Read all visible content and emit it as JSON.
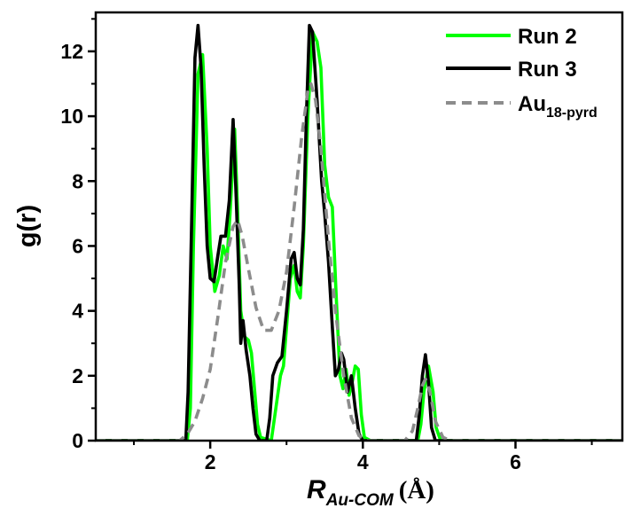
{
  "chart_data": {
    "type": "line",
    "xlabel": {
      "main": "R",
      "subscript": "Au-COM",
      "unit": "(Å)"
    },
    "ylabel": "g(r)",
    "xlim": [
      0.5,
      7.4
    ],
    "ylim": [
      0,
      13.2
    ],
    "x_ticks": [
      2,
      4,
      6
    ],
    "y_ticks": [
      0,
      2,
      4,
      6,
      8,
      10,
      12
    ],
    "x_tick_labels": [
      "2",
      "4",
      "6"
    ],
    "y_tick_labels": [
      "0",
      "2",
      "4",
      "6",
      "8",
      "10",
      "12"
    ],
    "grid": false,
    "legend_position": "top-right",
    "series": [
      {
        "name": "Run 2",
        "legend_label": {
          "main": "Run 2",
          "subscript": ""
        },
        "color": "#00ff00",
        "dash": "solid",
        "points": [
          [
            0.5,
            0
          ],
          [
            1.7,
            0
          ],
          [
            1.74,
            1.0
          ],
          [
            1.78,
            6.0
          ],
          [
            1.84,
            11.3
          ],
          [
            1.9,
            11.9
          ],
          [
            1.96,
            9.0
          ],
          [
            2.0,
            6.0
          ],
          [
            2.06,
            4.6
          ],
          [
            2.12,
            5.1
          ],
          [
            2.17,
            6.0
          ],
          [
            2.22,
            5.6
          ],
          [
            2.26,
            7.0
          ],
          [
            2.32,
            9.6
          ],
          [
            2.36,
            7.0
          ],
          [
            2.4,
            4.0
          ],
          [
            2.45,
            3.2
          ],
          [
            2.5,
            3.1
          ],
          [
            2.54,
            2.7
          ],
          [
            2.58,
            1.6
          ],
          [
            2.62,
            0.5
          ],
          [
            2.66,
            0.1
          ],
          [
            2.8,
            0
          ],
          [
            2.86,
            1.0
          ],
          [
            2.92,
            2.0
          ],
          [
            2.96,
            2.3
          ],
          [
            3.0,
            3.5
          ],
          [
            3.05,
            5.0
          ],
          [
            3.1,
            5.4
          ],
          [
            3.14,
            4.6
          ],
          [
            3.18,
            4.4
          ],
          [
            3.22,
            6.0
          ],
          [
            3.28,
            10.0
          ],
          [
            3.34,
            12.6
          ],
          [
            3.4,
            12.3
          ],
          [
            3.45,
            11.5
          ],
          [
            3.5,
            8.5
          ],
          [
            3.55,
            7.5
          ],
          [
            3.6,
            7.2
          ],
          [
            3.65,
            4.5
          ],
          [
            3.7,
            2.0
          ],
          [
            3.74,
            1.6
          ],
          [
            3.78,
            2.2
          ],
          [
            3.82,
            1.4
          ],
          [
            3.86,
            1.8
          ],
          [
            3.9,
            2.3
          ],
          [
            3.94,
            2.2
          ],
          [
            3.98,
            0.8
          ],
          [
            4.02,
            0.1
          ],
          [
            4.1,
            0
          ],
          [
            4.72,
            0
          ],
          [
            4.76,
            0.5
          ],
          [
            4.8,
            1.5
          ],
          [
            4.86,
            2.3
          ],
          [
            4.92,
            1.5
          ],
          [
            4.96,
            0.4
          ],
          [
            5.02,
            0
          ],
          [
            7.4,
            0
          ]
        ]
      },
      {
        "name": "Run 3",
        "legend_label": {
          "main": "Run 3",
          "subscript": ""
        },
        "color": "#000000",
        "dash": "solid",
        "points": [
          [
            0.5,
            0
          ],
          [
            1.68,
            0
          ],
          [
            1.71,
            1.5
          ],
          [
            1.75,
            6.0
          ],
          [
            1.8,
            11.8
          ],
          [
            1.84,
            12.8
          ],
          [
            1.88,
            11.5
          ],
          [
            1.92,
            8.5
          ],
          [
            1.96,
            6.0
          ],
          [
            2.0,
            5.0
          ],
          [
            2.05,
            4.9
          ],
          [
            2.1,
            5.7
          ],
          [
            2.14,
            6.3
          ],
          [
            2.2,
            6.3
          ],
          [
            2.25,
            7.4
          ],
          [
            2.3,
            9.9
          ],
          [
            2.34,
            7.5
          ],
          [
            2.38,
            4.8
          ],
          [
            2.4,
            3.0
          ],
          [
            2.43,
            3.7
          ],
          [
            2.47,
            2.8
          ],
          [
            2.52,
            2.0
          ],
          [
            2.56,
            1.0
          ],
          [
            2.6,
            0.2
          ],
          [
            2.65,
            0
          ],
          [
            2.74,
            0
          ],
          [
            2.78,
            0.7
          ],
          [
            2.82,
            2.0
          ],
          [
            2.88,
            2.4
          ],
          [
            2.94,
            2.6
          ],
          [
            3.0,
            4.0
          ],
          [
            3.06,
            5.6
          ],
          [
            3.1,
            5.8
          ],
          [
            3.14,
            5.0
          ],
          [
            3.18,
            4.8
          ],
          [
            3.22,
            6.5
          ],
          [
            3.26,
            10.0
          ],
          [
            3.3,
            12.8
          ],
          [
            3.34,
            12.6
          ],
          [
            3.4,
            10.5
          ],
          [
            3.46,
            8.0
          ],
          [
            3.5,
            7.0
          ],
          [
            3.55,
            5.5
          ],
          [
            3.6,
            3.5
          ],
          [
            3.64,
            2.0
          ],
          [
            3.68,
            2.2
          ],
          [
            3.72,
            2.7
          ],
          [
            3.75,
            2.5
          ],
          [
            3.8,
            1.5
          ],
          [
            3.85,
            2.0
          ],
          [
            3.9,
            1.0
          ],
          [
            3.95,
            0.2
          ],
          [
            4.0,
            0
          ],
          [
            4.7,
            0
          ],
          [
            4.74,
            0.8
          ],
          [
            4.78,
            2.0
          ],
          [
            4.82,
            2.65
          ],
          [
            4.86,
            1.8
          ],
          [
            4.9,
            0.4
          ],
          [
            4.95,
            0
          ],
          [
            7.4,
            0
          ]
        ]
      },
      {
        "name": "Au18-pyrd",
        "legend_label": {
          "main": "Au",
          "subscript": "18-pyrd"
        },
        "color": "#8c8c8c",
        "dash": "dashed",
        "points": [
          [
            0.5,
            0
          ],
          [
            1.6,
            0
          ],
          [
            1.7,
            0.2
          ],
          [
            1.8,
            0.6
          ],
          [
            1.9,
            1.3
          ],
          [
            2.0,
            2.2
          ],
          [
            2.1,
            3.8
          ],
          [
            2.2,
            5.5
          ],
          [
            2.3,
            6.6
          ],
          [
            2.36,
            6.8
          ],
          [
            2.42,
            6.3
          ],
          [
            2.5,
            5.3
          ],
          [
            2.6,
            4.1
          ],
          [
            2.7,
            3.4
          ],
          [
            2.8,
            3.4
          ],
          [
            2.9,
            4.0
          ],
          [
            3.0,
            5.2
          ],
          [
            3.1,
            7.2
          ],
          [
            3.2,
            9.4
          ],
          [
            3.28,
            10.8
          ],
          [
            3.32,
            11.0
          ],
          [
            3.38,
            10.5
          ],
          [
            3.45,
            9.0
          ],
          [
            3.55,
            6.2
          ],
          [
            3.65,
            3.8
          ],
          [
            3.75,
            2.0
          ],
          [
            3.85,
            0.7
          ],
          [
            3.95,
            0.15
          ],
          [
            4.05,
            0
          ],
          [
            4.55,
            0
          ],
          [
            4.65,
            0.3
          ],
          [
            4.72,
            1.0
          ],
          [
            4.78,
            1.7
          ],
          [
            4.82,
            1.9
          ],
          [
            4.88,
            1.5
          ],
          [
            4.95,
            0.6
          ],
          [
            5.05,
            0.1
          ],
          [
            5.15,
            0
          ],
          [
            7.4,
            0
          ]
        ]
      }
    ]
  }
}
